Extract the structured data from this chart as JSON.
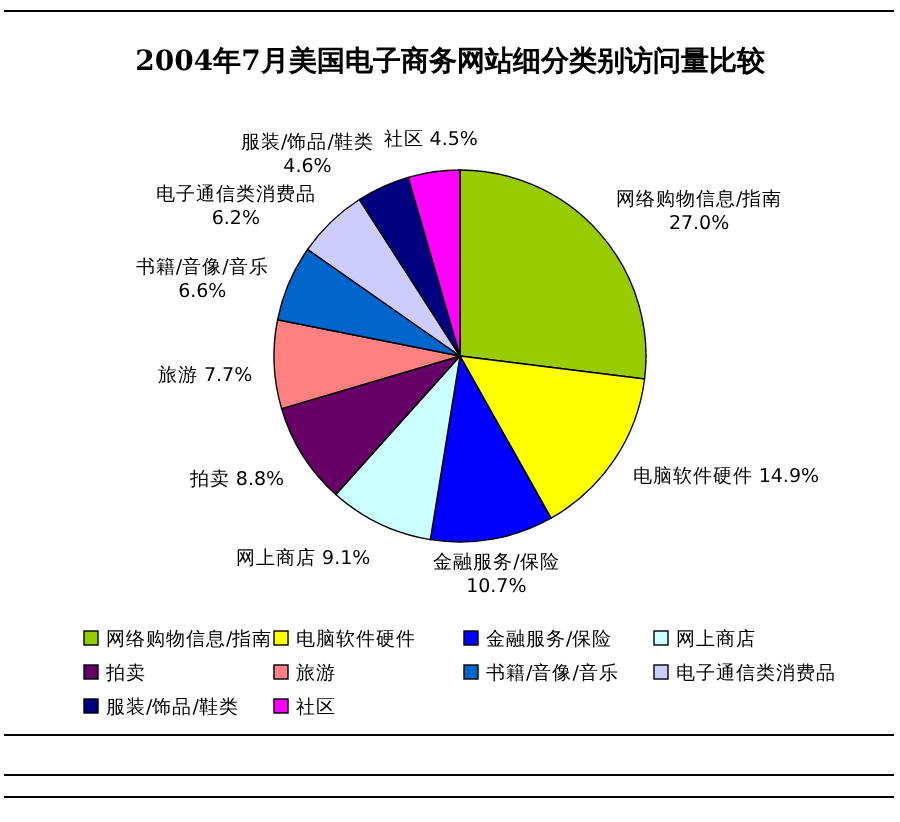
{
  "chart_data": {
    "type": "pie",
    "title": "2004年7月美国电子商务网站细分类别访问量比较",
    "categories": [
      "网络购物信息/指南",
      "电脑软件硬件",
      "金融服务/保险",
      "网上商店",
      "拍卖",
      "旅游",
      "书籍/音像/音乐",
      "电子通信类消费品",
      "服装/饰品/鞋类",
      "社区"
    ],
    "values": [
      27.0,
      14.9,
      10.7,
      9.1,
      8.8,
      7.7,
      6.6,
      6.2,
      4.6,
      4.5
    ],
    "value_labels": [
      "27.0%",
      "14.9%",
      "10.7%",
      "9.1%",
      "8.8%",
      "7.7%",
      "6.6%",
      "6.2%",
      "4.6%",
      "4.5%"
    ],
    "colors": [
      "#99cc00",
      "#ffff00",
      "#0000ff",
      "#ccffff",
      "#660066",
      "#ff8080",
      "#0066cc",
      "#ccccff",
      "#000080",
      "#ff00ff"
    ],
    "legend": "bottom"
  }
}
